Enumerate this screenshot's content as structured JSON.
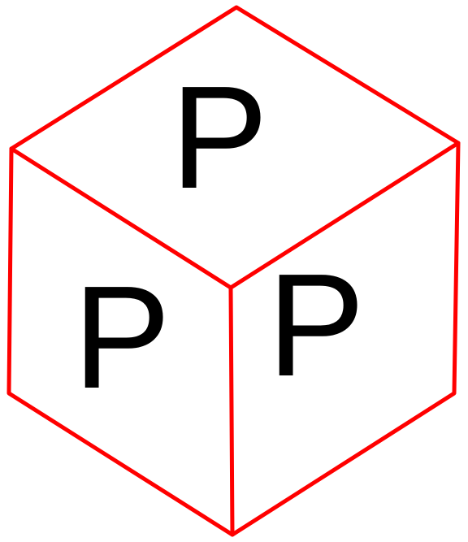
{
  "cube": {
    "edge_color": "#ff0000",
    "letter_color": "#000000",
    "faces": {
      "top": {
        "letter": "P"
      },
      "left": {
        "letter": "P"
      },
      "right": {
        "letter": "P"
      }
    }
  }
}
